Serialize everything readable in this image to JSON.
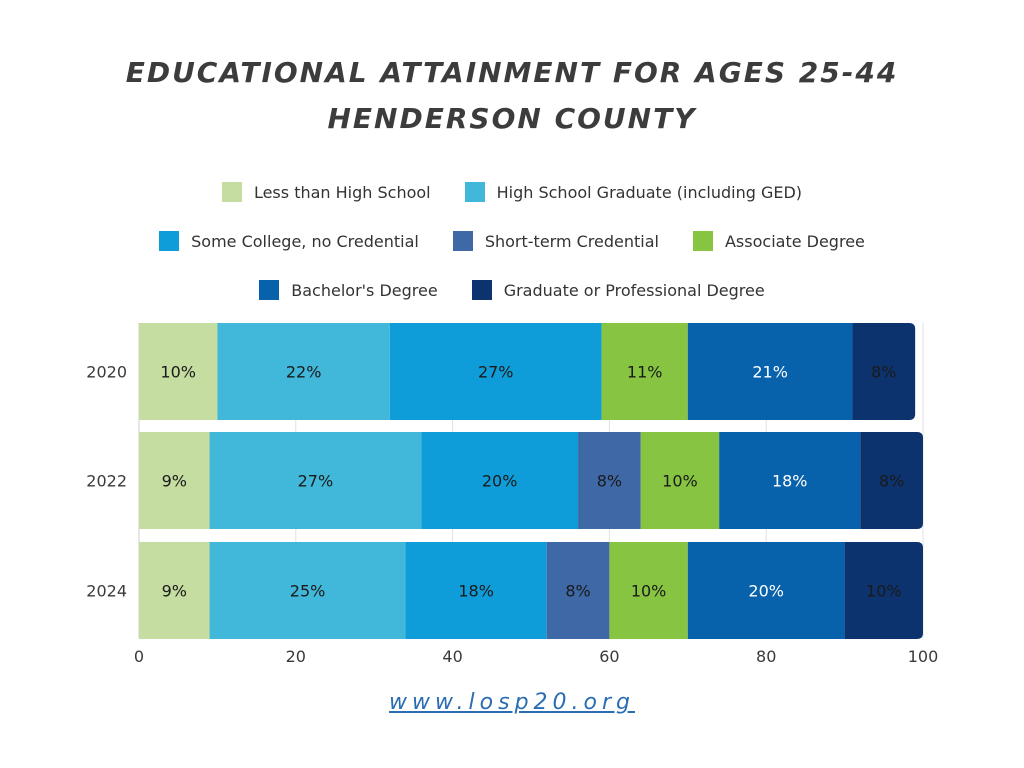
{
  "chart_data": {
    "type": "bar",
    "orientation": "horizontal",
    "stacked": true,
    "title": "EDUCATIONAL ATTAINMENT FOR AGES 25-44",
    "subtitle": "HENDERSON COUNTY",
    "categories": [
      "2020",
      "2022",
      "2024"
    ],
    "xlim": [
      0,
      100
    ],
    "xticks": [
      0,
      20,
      40,
      60,
      80,
      100
    ],
    "grid": true,
    "legend_position": "top-center",
    "series": [
      {
        "name": "Less than High School",
        "color": "#c5dda0",
        "values": [
          10,
          9,
          9
        ],
        "labels": [
          "10%",
          "9%",
          "9%"
        ]
      },
      {
        "name": "High School Graduate (including GED)",
        "color": "#41b8d9",
        "values": [
          22,
          27,
          25
        ],
        "labels": [
          "22%",
          "27%",
          "25%"
        ]
      },
      {
        "name": "Some College, no Credential",
        "color": "#0f9dd9",
        "values": [
          27,
          20,
          18
        ],
        "labels": [
          "27%",
          "20%",
          "18%"
        ]
      },
      {
        "name": "Short-term Credential",
        "color": "#3f68a6",
        "values": [
          0,
          8,
          8
        ],
        "labels": [
          "",
          "8%",
          "8%"
        ]
      },
      {
        "name": "Associate Degree",
        "color": "#87c441",
        "values": [
          11,
          10,
          10
        ],
        "labels": [
          "11%",
          "10%",
          "10%"
        ]
      },
      {
        "name": "Bachelor's Degree",
        "color": "#0861ab",
        "values": [
          21,
          18,
          20
        ],
        "labels": [
          "21%",
          "18%",
          "20%"
        ]
      },
      {
        "name": "Graduate or Professional Degree",
        "color": "#0d336f",
        "values": [
          8,
          8,
          10
        ],
        "labels": [
          "8%",
          "8%",
          "10%"
        ]
      }
    ]
  },
  "footer": "www.losp20.org"
}
